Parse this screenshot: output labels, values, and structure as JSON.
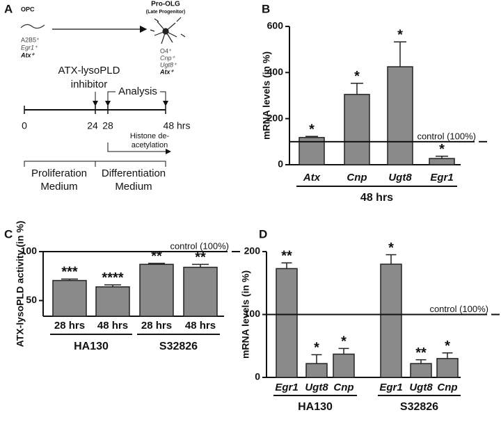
{
  "panel_a": {
    "panel": "A",
    "opc": "OPC",
    "opc_markers": [
      "A2B5⁺",
      "Egr1⁺",
      "Atx⁺"
    ],
    "pro_olg": "Pro-OLG",
    "pro_olg_sub": "(Late Progenitor)",
    "pro_olg_markers": [
      "O4⁺",
      "Cnp⁺",
      "Ugt8⁺",
      "Atx⁺"
    ],
    "inhibitor": [
      "ATX-lysoPLD",
      "inhibitor"
    ],
    "analysis": "Analysis",
    "timeline": [
      "0",
      "24",
      "28",
      "48 hrs"
    ],
    "histone": [
      "Histone de-",
      "acetylation"
    ],
    "proliferation": [
      "Proliferation",
      "Medium"
    ],
    "differentiation": [
      "Differentiation",
      "Medium"
    ]
  },
  "chart_data": [
    {
      "panel": "B",
      "type": "bar",
      "ylabel": "mRNA levels (in %)",
      "ylim": [
        0,
        600
      ],
      "yticks": [
        0,
        200,
        400,
        600
      ],
      "italic_categories": true,
      "reference": {
        "value": 100,
        "label": "control (100%)"
      },
      "series": [
        {
          "name": "48 hrs",
          "color": "#8a8a8a",
          "categories": [
            "Atx",
            "Cnp",
            "Ugt8",
            "Egr1"
          ],
          "values": [
            118,
            305,
            425,
            27
          ],
          "errors": [
            5,
            48,
            108,
            10
          ],
          "annotations": [
            "*",
            "*",
            "*",
            "*"
          ]
        }
      ]
    },
    {
      "panel": "C",
      "type": "bar",
      "ylabel": "ATX-lysoPLD activity (in %)",
      "ylim": [
        34,
        100
      ],
      "yticks": [
        50,
        100
      ],
      "italic_categories": false,
      "reference": {
        "value": 100,
        "label": "control (100%)"
      },
      "series": [
        {
          "name": "HA130",
          "color": "#8a8a8a",
          "categories": [
            "28 hrs",
            "48 hrs"
          ],
          "values": [
            70.5,
            64
          ],
          "errors": [
            1.5,
            2
          ],
          "annotations": [
            "***",
            "****"
          ]
        },
        {
          "name": "S32826",
          "color": "#8a8a8a",
          "categories": [
            "28 hrs",
            "48 hrs"
          ],
          "values": [
            87,
            84
          ],
          "errors": [
            1,
            3
          ],
          "annotations": [
            "**",
            "**"
          ]
        }
      ]
    },
    {
      "panel": "D",
      "type": "bar",
      "ylabel": "mRNA levels (in %)",
      "ylim": [
        0,
        200
      ],
      "yticks": [
        0,
        100,
        200
      ],
      "italic_categories": true,
      "reference": {
        "value": 100,
        "label": "control (100%)"
      },
      "series": [
        {
          "name": "HA130",
          "color": "#8a8a8a",
          "categories": [
            "Egr1",
            "Ugt8",
            "Cnp"
          ],
          "values": [
            173,
            22,
            37
          ],
          "errors": [
            9,
            14,
            9
          ],
          "annotations": [
            "**",
            "*",
            "*"
          ]
        },
        {
          "name": "S32826",
          "color": "#8a8a8a",
          "categories": [
            "Egr1",
            "Ugt8",
            "Cnp"
          ],
          "values": [
            180,
            22,
            30
          ],
          "errors": [
            15,
            6,
            9
          ],
          "annotations": [
            "*",
            "**",
            "*"
          ]
        }
      ]
    }
  ]
}
